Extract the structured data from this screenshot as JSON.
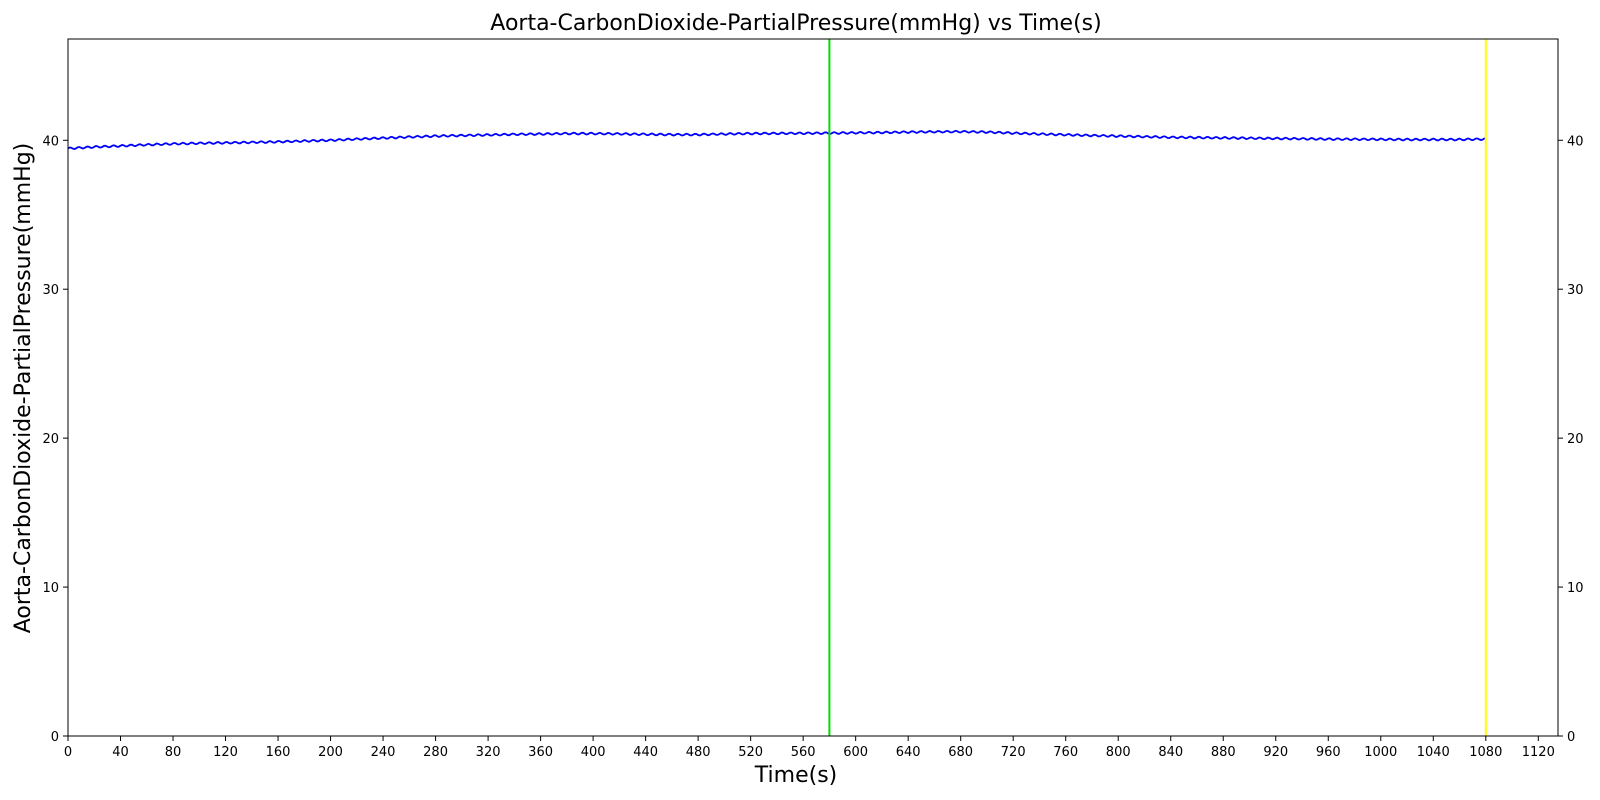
{
  "chart_data": {
    "type": "line",
    "title": "Aorta-CarbonDioxide-PartialPressure(mmHg) vs Time(s)",
    "xlabel": "Time(s)",
    "ylabel": "Aorta-CarbonDioxide-PartialPressure(mmHg)",
    "xlim": [
      0,
      1135
    ],
    "ylim": [
      0,
      46.8
    ],
    "x_ticks": [
      0,
      40,
      80,
      120,
      160,
      200,
      240,
      280,
      320,
      360,
      400,
      440,
      480,
      520,
      560,
      600,
      640,
      680,
      720,
      760,
      800,
      840,
      880,
      920,
      960,
      1000,
      1040,
      1080,
      1120
    ],
    "y_ticks": [
      0,
      10,
      20,
      30,
      40
    ],
    "y_ticks_right": [
      0,
      10,
      20,
      30,
      40
    ],
    "grid": false,
    "series": [
      {
        "color": "#0000ff",
        "x": [
          0,
          20,
          40,
          60,
          80,
          100,
          120,
          140,
          160,
          180,
          200,
          220,
          240,
          260,
          280,
          300,
          320,
          340,
          360,
          380,
          400,
          420,
          440,
          460,
          480,
          500,
          520,
          540,
          560,
          580,
          600,
          620,
          640,
          660,
          680,
          700,
          720,
          740,
          760,
          780,
          800,
          820,
          840,
          860,
          880,
          900,
          920,
          940,
          960,
          980,
          1000,
          1020,
          1040,
          1060,
          1080
        ],
        "y": [
          39.45,
          39.55,
          39.62,
          39.7,
          39.76,
          39.8,
          39.83,
          39.86,
          39.9,
          39.95,
          40.0,
          40.08,
          40.15,
          40.22,
          40.28,
          40.32,
          40.36,
          40.4,
          40.42,
          40.45,
          40.45,
          40.43,
          40.4,
          40.38,
          40.38,
          40.42,
          40.45,
          40.46,
          40.47,
          40.48,
          40.5,
          40.52,
          40.55,
          40.57,
          40.58,
          40.55,
          40.48,
          40.42,
          40.37,
          40.32,
          40.28,
          40.24,
          40.2,
          40.18,
          40.16,
          40.14,
          40.12,
          40.1,
          40.08,
          40.07,
          40.06,
          40.05,
          40.05,
          40.05,
          40.08
        ]
      }
    ],
    "vertical_lines": [
      {
        "x": 580,
        "color": "#00dd00"
      },
      {
        "x": 1080,
        "color": "#ffff00"
      }
    ]
  }
}
